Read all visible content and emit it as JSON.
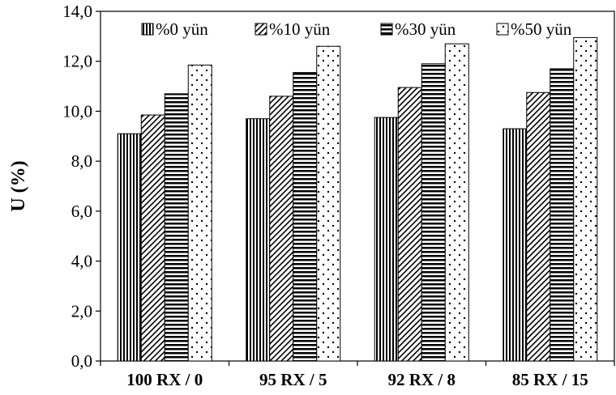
{
  "chart_data": {
    "type": "bar",
    "title": "",
    "xlabel": "",
    "ylabel": "U (%)",
    "ylim": [
      0,
      14
    ],
    "yticks": [
      "0,0",
      "2,0",
      "4,0",
      "6,0",
      "8,0",
      "10,0",
      "12,0",
      "14,0"
    ],
    "categories": [
      "100 RX / 0",
      "95 RX / 5",
      "92 RX / 8",
      "85 RX / 15"
    ],
    "series": [
      {
        "name": "%0 yün",
        "pattern": "vertical-stripes",
        "values": [
          9.1,
          9.7,
          9.75,
          9.3
        ]
      },
      {
        "name": "%10 yün",
        "pattern": "diagonal-stripes",
        "values": [
          9.85,
          10.6,
          10.95,
          10.75
        ]
      },
      {
        "name": "%30 yün",
        "pattern": "horizontal-stripes",
        "values": [
          10.7,
          11.55,
          11.9,
          11.7
        ]
      },
      {
        "name": "%50 yün",
        "pattern": "dots",
        "values": [
          11.85,
          12.6,
          12.7,
          12.95
        ]
      }
    ],
    "legend_position": "top",
    "grid": false,
    "colors": {
      "bar_fill": "#ffffff",
      "stroke": "#000000"
    }
  }
}
